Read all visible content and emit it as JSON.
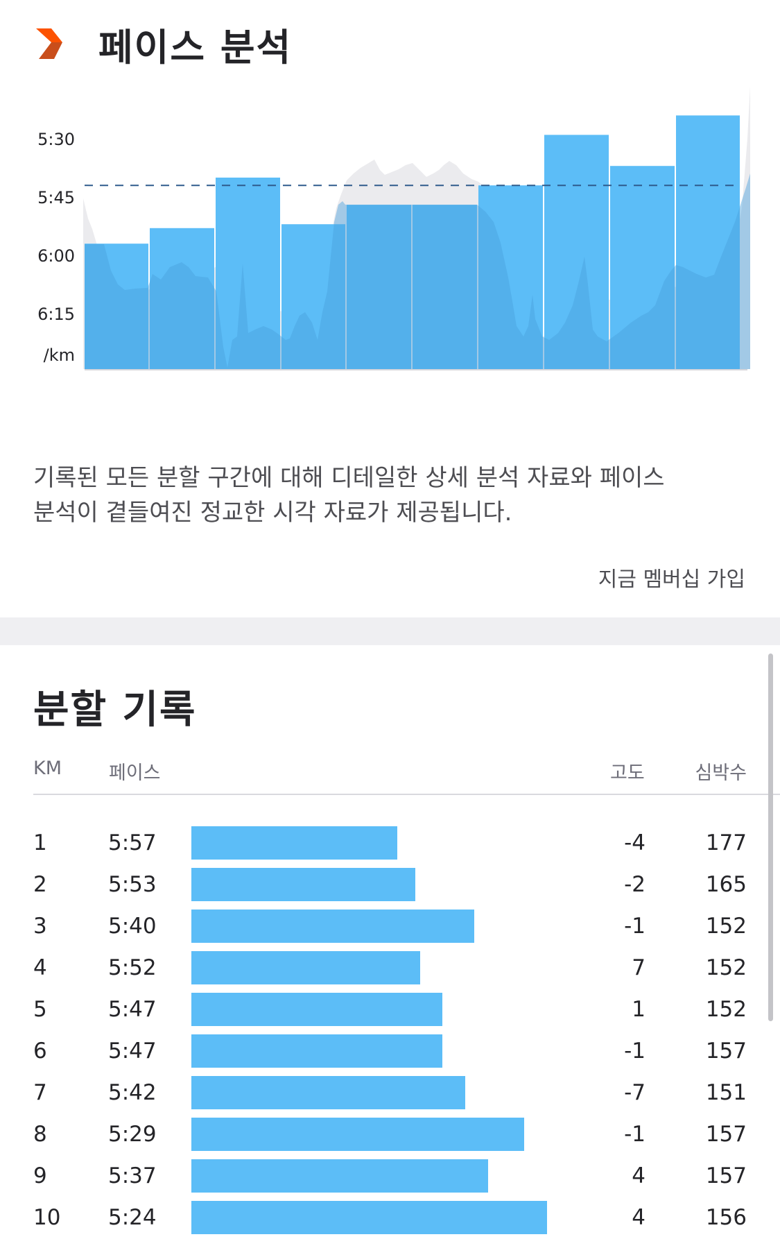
{
  "pace_analysis": {
    "title": "페이스 분석",
    "icon": "chevron-right-icon",
    "description_line1": "기록된 모든 분할 구간에 대해 디테일한 상세 분석 자료와 페이스",
    "description_line2": "분석이 곁들여진 정교한 시각 자료가 제공됩니다.",
    "join_label": "지금 멤버십 가입"
  },
  "colors": {
    "accent": "#fc5200",
    "bar": "#5cbdf7",
    "elevation": "#ebebee",
    "average_line": "#2f5b8c"
  },
  "chart_data": {
    "type": "bar",
    "title": "",
    "xlabel": "",
    "ylabel": "/km",
    "y_ticks": [
      "5:30",
      "5:45",
      "6:00",
      "6:15"
    ],
    "unit_label": "/km",
    "categories": [
      "1",
      "2",
      "3",
      "4",
      "5",
      "6",
      "7",
      "8",
      "9",
      "10"
    ],
    "values": [
      "5:57",
      "5:53",
      "5:40",
      "5:52",
      "5:47",
      "5:47",
      "5:42",
      "5:29",
      "5:37",
      "5:24"
    ],
    "average_pace": "5:42",
    "grid": false
  },
  "splits": {
    "title": "분할 기록",
    "columns": {
      "km": "KM",
      "pace": "페이스",
      "elevation": "고도",
      "heart_rate": "심박수"
    },
    "rows": [
      {
        "km": "1",
        "pace": "5:57",
        "elevation": "-4",
        "heart_rate": "177"
      },
      {
        "km": "2",
        "pace": "5:53",
        "elevation": "-2",
        "heart_rate": "165"
      },
      {
        "km": "3",
        "pace": "5:40",
        "elevation": "-1",
        "heart_rate": "152"
      },
      {
        "km": "4",
        "pace": "5:52",
        "elevation": "7",
        "heart_rate": "152"
      },
      {
        "km": "5",
        "pace": "5:47",
        "elevation": "1",
        "heart_rate": "152"
      },
      {
        "km": "6",
        "pace": "5:47",
        "elevation": "-1",
        "heart_rate": "157"
      },
      {
        "km": "7",
        "pace": "5:42",
        "elevation": "-7",
        "heart_rate": "151"
      },
      {
        "km": "8",
        "pace": "5:29",
        "elevation": "-1",
        "heart_rate": "157"
      },
      {
        "km": "9",
        "pace": "5:37",
        "elevation": "4",
        "heart_rate": "157"
      },
      {
        "km": "10",
        "pace": "5:24",
        "elevation": "4",
        "heart_rate": "156"
      }
    ]
  }
}
